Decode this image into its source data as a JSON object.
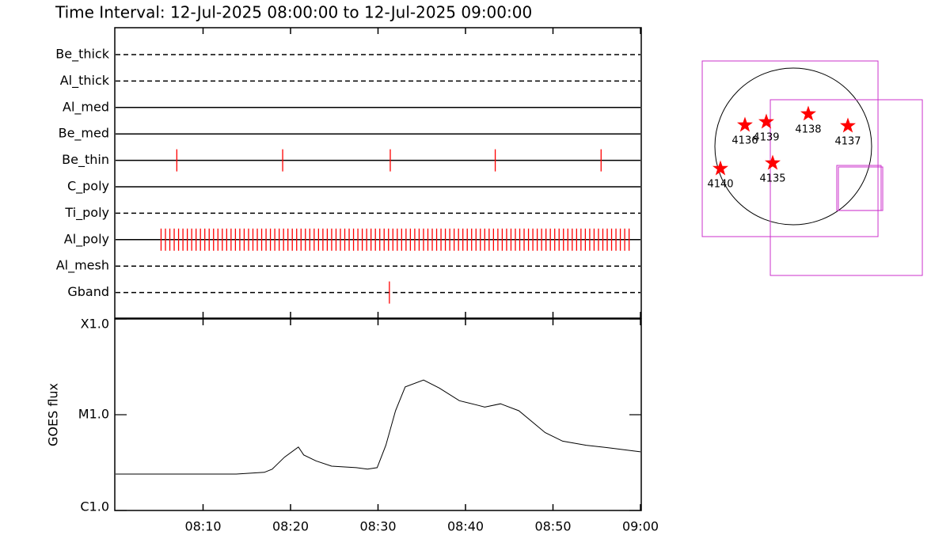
{
  "chart_data": [
    {
      "type": "timeline",
      "title": "Time Interval: 12-Jul-2025 08:00:00 to 12-Jul-2025 09:00:00",
      "categories": [
        "Be_thick",
        "Al_thick",
        "Al_med",
        "Be_med",
        "Be_thin",
        "C_poly",
        "Ti_poly",
        "Al_poly",
        "Al_mesh",
        "Gband"
      ],
      "styles": [
        "dashed",
        "dashed",
        "solid",
        "solid",
        "solid",
        "solid",
        "dashed",
        "solid",
        "dashed",
        "dashed"
      ],
      "times": [
        [],
        [],
        [],
        [],
        [
          7.0,
          19.1,
          31.4,
          43.4,
          55.5
        ],
        [],
        [],
        [
          5.2,
          5.7,
          6.2,
          6.7,
          7.2,
          7.7,
          8.2,
          8.7,
          9.2,
          9.7,
          10.2,
          10.7,
          11.2,
          11.7,
          12.2,
          12.7,
          13.2,
          13.7,
          14.2,
          14.7,
          15.2,
          15.7,
          16.2,
          16.7,
          17.2,
          17.7,
          18.2,
          18.7,
          19.2,
          19.7,
          20.2,
          20.7,
          21.2,
          21.7,
          22.2,
          22.7,
          23.2,
          23.7,
          24.2,
          24.7,
          25.2,
          25.7,
          26.2,
          26.7,
          27.2,
          27.7,
          28.2,
          28.7,
          29.2,
          29.7,
          30.2,
          30.7,
          31.2,
          31.7,
          32.2,
          32.7,
          33.2,
          33.7,
          34.2,
          34.7,
          35.2,
          35.7,
          36.2,
          36.7,
          37.2,
          37.7,
          38.2,
          38.7,
          39.2,
          39.7,
          40.2,
          40.7,
          41.2,
          41.7,
          42.2,
          42.7,
          43.2,
          43.7,
          44.2,
          44.7,
          45.2,
          45.7,
          46.2,
          46.7,
          47.2,
          47.7,
          48.2,
          48.7,
          49.2,
          49.7,
          50.2,
          50.7,
          51.2,
          51.7,
          52.2,
          52.7,
          53.2,
          53.7,
          54.2,
          54.7,
          55.2,
          55.7,
          56.2,
          56.7,
          57.2,
          57.7,
          58.2,
          58.7
        ],
        [],
        [
          31.3
        ]
      ],
      "color": "#ff0000",
      "xlim": [
        0,
        60
      ],
      "xticks": [
        {
          "value": 10,
          "label": "08:10"
        },
        {
          "value": 20,
          "label": "08:20"
        },
        {
          "value": 30,
          "label": "08:30"
        },
        {
          "value": 40,
          "label": "08:40"
        },
        {
          "value": 50,
          "label": "08:50"
        },
        {
          "value": 60,
          "label": "09:00"
        }
      ]
    },
    {
      "type": "line",
      "ylabel": "GOES flux",
      "x": [
        0,
        13.8,
        17.0,
        17.9,
        19.3,
        20.9,
        21.5,
        22.9,
        24.7,
        27.5,
        28.8,
        29.9,
        30.9,
        32.0,
        33.1,
        35.2,
        37.0,
        39.3,
        41.5,
        42.2,
        44.0,
        46.1,
        49.1,
        51.1,
        53.8,
        56.5,
        60.0
      ],
      "values": [
        2.4e-06,
        2.4e-06,
        2.5e-06,
        2.7e-06,
        3.6e-06,
        4.6e-06,
        3.8e-06,
        3.3e-06,
        2.9e-06,
        2.8e-06,
        2.7e-06,
        2.8e-06,
        4.8e-06,
        1.1e-05,
        1.95e-05,
        2.3e-05,
        1.9e-05,
        1.4e-05,
        1.25e-05,
        1.2e-05,
        1.3e-05,
        1.1e-05,
        6.5e-06,
        5.3e-06,
        4.8e-06,
        4.5e-06,
        4.1e-06
      ],
      "color": "#000000",
      "log_scale": true,
      "ylim": [
        1e-06,
        0.0001
      ],
      "yticks": [
        {
          "value": 1e-06,
          "label": "C1.0"
        },
        {
          "value": 1e-05,
          "label": "M1.0"
        },
        {
          "value": 0.0001,
          "label": "X1.0"
        }
      ],
      "xlim": [
        0,
        60
      ],
      "xticks": [
        {
          "value": 10,
          "label": "08:10"
        },
        {
          "value": 20,
          "label": "08:20"
        },
        {
          "value": 30,
          "label": "08:30"
        },
        {
          "value": 40,
          "label": "08:40"
        },
        {
          "value": 50,
          "label": "08:50"
        },
        {
          "value": 60,
          "label": "09:00"
        }
      ]
    },
    {
      "type": "map",
      "labels": [
        "4136",
        "4139",
        "4138",
        "4137",
        "4140",
        "4135"
      ],
      "x": [
        -592,
        -330,
        184,
        669,
        -892,
        -252
      ],
      "y": [
        262,
        301,
        398,
        252,
        -272,
        -204
      ],
      "color": "#ff0000",
      "radius": 960,
      "box_color": "#cc33cc",
      "boxes": [
        {
          "x": [
            -1115,
            1038
          ],
          "y": [
            1047,
            -1105
          ]
        },
        {
          "x": [
            -281,
            1581
          ],
          "y": [
            572,
            -1581
          ]
        },
        {
          "x": [
            533,
            1076
          ],
          "y": [
            -233,
            -785
          ]
        },
        {
          "x": [
            553,
            1096
          ],
          "y": [
            -252,
            -785
          ]
        }
      ],
      "xlim": [
        -1474,
        1726
      ],
      "ylim": [
        -1406,
        1406
      ]
    }
  ]
}
